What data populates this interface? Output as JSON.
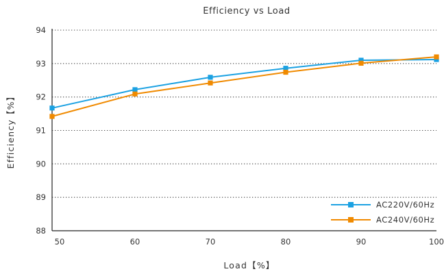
{
  "chart_data": {
    "type": "line",
    "title": "Efficiency vs Load",
    "xlabel": "Load【%】",
    "ylabel": "Efficiency【%】",
    "xlim": [
      49,
      100
    ],
    "ylim": [
      88,
      94
    ],
    "xticks": [
      50,
      60,
      70,
      80,
      90,
      100
    ],
    "yticks": [
      88,
      89,
      90,
      91,
      92,
      93,
      94
    ],
    "grid": "horizontal dotted",
    "legend_position": "bottom-right",
    "series": [
      {
        "name": "AC220V/60Hz",
        "color": "#1ba1e2",
        "x": [
          49,
          60,
          70,
          80,
          90,
          100
        ],
        "y": [
          91.67,
          92.22,
          92.59,
          92.86,
          93.1,
          93.12
        ]
      },
      {
        "name": "AC240V/60Hz",
        "color": "#f08a00",
        "x": [
          49,
          60,
          70,
          80,
          90,
          100
        ],
        "y": [
          91.42,
          92.09,
          92.42,
          92.74,
          93.01,
          93.2
        ]
      }
    ]
  }
}
